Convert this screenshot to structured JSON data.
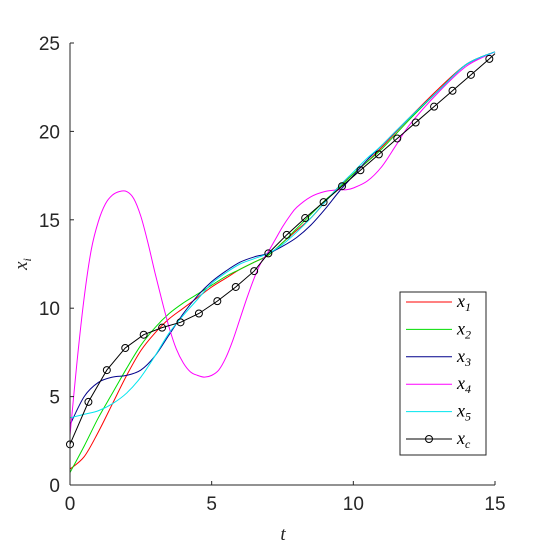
{
  "chart_data": {
    "type": "line",
    "title": "",
    "xlabel": "t",
    "ylabel_main": "x",
    "ylabel_sub": "i",
    "xlim": [
      0,
      15
    ],
    "ylim": [
      0,
      25
    ],
    "x_ticks": [
      "0",
      "5",
      "10",
      "15"
    ],
    "y_ticks": [
      "0",
      "5",
      "10",
      "15",
      "20",
      "25"
    ],
    "grid": false,
    "legend_position": "lower-right",
    "series": [
      {
        "name": "x1",
        "label_main": "x",
        "label_sub": "1",
        "color": "#ff0000",
        "marker": "none",
        "points": [
          [
            0,
            0.9
          ],
          [
            0.5,
            1.6
          ],
          [
            1,
            3.0
          ],
          [
            1.5,
            4.6
          ],
          [
            2,
            6.2
          ],
          [
            2.5,
            7.6
          ],
          [
            3,
            8.6
          ],
          [
            3.5,
            9.4
          ],
          [
            4,
            10.0
          ],
          [
            4.5,
            10.6
          ],
          [
            5,
            11.2
          ],
          [
            5.5,
            11.7
          ],
          [
            6,
            12.2
          ],
          [
            6.5,
            12.6
          ],
          [
            7,
            13.0
          ],
          [
            7.5,
            13.7
          ],
          [
            8,
            14.4
          ],
          [
            8.5,
            15.1
          ],
          [
            9,
            16.0
          ],
          [
            9.5,
            16.9
          ],
          [
            10,
            17.6
          ],
          [
            10.5,
            18.3
          ],
          [
            11,
            19.1
          ],
          [
            12,
            20.8
          ],
          [
            13,
            22.4
          ],
          [
            14,
            23.8
          ],
          [
            15,
            24.5
          ]
        ]
      },
      {
        "name": "x2",
        "label_main": "x",
        "label_sub": "2",
        "color": "#00dd00",
        "marker": "none",
        "points": [
          [
            0,
            0.7
          ],
          [
            0.5,
            2.2
          ],
          [
            1,
            3.8
          ],
          [
            1.5,
            5.2
          ],
          [
            2,
            6.6
          ],
          [
            2.5,
            7.9
          ],
          [
            3,
            8.9
          ],
          [
            3.5,
            9.7
          ],
          [
            4,
            10.3
          ],
          [
            4.5,
            10.8
          ],
          [
            5,
            11.3
          ],
          [
            5.5,
            11.8
          ],
          [
            6,
            12.2
          ],
          [
            6.5,
            12.6
          ],
          [
            7,
            13.0
          ],
          [
            7.5,
            13.7
          ],
          [
            8,
            14.5
          ],
          [
            8.5,
            15.3
          ],
          [
            9,
            16.1
          ],
          [
            9.5,
            16.8
          ],
          [
            10,
            17.6
          ],
          [
            10.5,
            18.3
          ],
          [
            11,
            19.0
          ],
          [
            12,
            20.7
          ],
          [
            13,
            22.3
          ],
          [
            14,
            23.8
          ],
          [
            15,
            24.5
          ]
        ]
      },
      {
        "name": "x3",
        "label_main": "x",
        "label_sub": "3",
        "color": "#00008b",
        "marker": "none",
        "points": [
          [
            0,
            3.4
          ],
          [
            0.5,
            5.0
          ],
          [
            1,
            5.8
          ],
          [
            1.5,
            6.1
          ],
          [
            2,
            6.2
          ],
          [
            2.5,
            6.5
          ],
          [
            3,
            7.3
          ],
          [
            3.5,
            8.5
          ],
          [
            4,
            9.7
          ],
          [
            4.5,
            10.7
          ],
          [
            5,
            11.5
          ],
          [
            5.5,
            12.1
          ],
          [
            6,
            12.6
          ],
          [
            6.5,
            12.9
          ],
          [
            7,
            13.1
          ],
          [
            7.5,
            13.5
          ],
          [
            8,
            14.0
          ],
          [
            8.5,
            14.7
          ],
          [
            9,
            15.6
          ],
          [
            9.5,
            16.6
          ],
          [
            10,
            17.5
          ],
          [
            10.5,
            18.4
          ],
          [
            11,
            19.2
          ],
          [
            12,
            20.8
          ],
          [
            13,
            22.3
          ],
          [
            14,
            23.8
          ],
          [
            15,
            24.5
          ]
        ]
      },
      {
        "name": "x4",
        "label_main": "x",
        "label_sub": "4",
        "color": "#ff00ff",
        "marker": "none",
        "points": [
          [
            0,
            2.8
          ],
          [
            0.25,
            7.0
          ],
          [
            0.5,
            10.6
          ],
          [
            0.75,
            13.3
          ],
          [
            1,
            14.9
          ],
          [
            1.25,
            15.9
          ],
          [
            1.5,
            16.4
          ],
          [
            1.75,
            16.6
          ],
          [
            2,
            16.6
          ],
          [
            2.25,
            16.2
          ],
          [
            2.5,
            15.2
          ],
          [
            2.75,
            13.7
          ],
          [
            3,
            12.0
          ],
          [
            3.25,
            10.4
          ],
          [
            3.5,
            8.9
          ],
          [
            3.75,
            7.7
          ],
          [
            4,
            6.9
          ],
          [
            4.25,
            6.4
          ],
          [
            4.5,
            6.2
          ],
          [
            4.75,
            6.1
          ],
          [
            5,
            6.2
          ],
          [
            5.25,
            6.5
          ],
          [
            5.5,
            7.2
          ],
          [
            5.75,
            8.2
          ],
          [
            6,
            9.4
          ],
          [
            6.25,
            10.6
          ],
          [
            6.5,
            11.7
          ],
          [
            6.75,
            12.6
          ],
          [
            7,
            13.2
          ],
          [
            7.25,
            13.9
          ],
          [
            7.5,
            14.6
          ],
          [
            7.75,
            15.2
          ],
          [
            8,
            15.7
          ],
          [
            8.5,
            16.3
          ],
          [
            9,
            16.6
          ],
          [
            9.5,
            16.7
          ],
          [
            9.75,
            16.7
          ],
          [
            10,
            16.8
          ],
          [
            10.5,
            17.2
          ],
          [
            11,
            18.0
          ],
          [
            11.5,
            19.2
          ],
          [
            12,
            20.4
          ],
          [
            13,
            22.2
          ],
          [
            14,
            23.7
          ],
          [
            15,
            24.5
          ]
        ]
      },
      {
        "name": "x5",
        "label_main": "x",
        "label_sub": "5",
        "color": "#00e5ee",
        "marker": "none",
        "points": [
          [
            0,
            3.8
          ],
          [
            0.5,
            4.0
          ],
          [
            1,
            4.2
          ],
          [
            1.5,
            4.6
          ],
          [
            2,
            5.2
          ],
          [
            2.5,
            6.1
          ],
          [
            3,
            7.3
          ],
          [
            3.5,
            8.6
          ],
          [
            4,
            9.6
          ],
          [
            4.5,
            10.5
          ],
          [
            5,
            11.4
          ],
          [
            5.5,
            12.0
          ],
          [
            6,
            12.5
          ],
          [
            6.5,
            12.8
          ],
          [
            7,
            13.1
          ],
          [
            7.5,
            13.6
          ],
          [
            8,
            14.3
          ],
          [
            8.5,
            15.1
          ],
          [
            9,
            16.0
          ],
          [
            9.5,
            16.9
          ],
          [
            10,
            17.7
          ],
          [
            10.5,
            18.5
          ],
          [
            11,
            19.2
          ],
          [
            12,
            20.8
          ],
          [
            13,
            22.3
          ],
          [
            14,
            23.8
          ],
          [
            15,
            24.5
          ]
        ]
      },
      {
        "name": "xc",
        "label_main": "x",
        "label_sub": "c",
        "color": "#000000",
        "marker": "circle",
        "points": [
          [
            0,
            2.3
          ],
          [
            0.65,
            4.7
          ],
          [
            1.3,
            6.5
          ],
          [
            1.95,
            7.75
          ],
          [
            2.6,
            8.5
          ],
          [
            3.25,
            8.9
          ],
          [
            3.9,
            9.2
          ],
          [
            4.55,
            9.7
          ],
          [
            5.2,
            10.4
          ],
          [
            5.85,
            11.2
          ],
          [
            6.5,
            12.1
          ],
          [
            7.0,
            13.1
          ],
          [
            7.65,
            14.15
          ],
          [
            8.3,
            15.1
          ],
          [
            8.95,
            16.0
          ],
          [
            9.6,
            16.9
          ],
          [
            10.25,
            17.8
          ],
          [
            10.9,
            18.7
          ],
          [
            11.55,
            19.6
          ],
          [
            12.2,
            20.5
          ],
          [
            12.85,
            21.4
          ],
          [
            13.5,
            22.3
          ],
          [
            14.15,
            23.2
          ],
          [
            14.8,
            24.1
          ],
          [
            15.0,
            24.4
          ]
        ]
      }
    ]
  }
}
